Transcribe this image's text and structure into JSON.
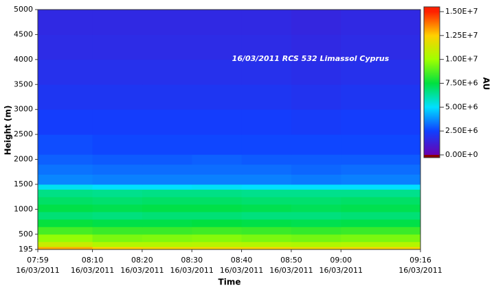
{
  "chart_data": {
    "type": "heatmap",
    "title": "16/03/2011 RCS 532 Limassol Cyprus",
    "x_label": "Time",
    "y_label": "Height (m)",
    "colorbar_label": "AU",
    "x": [
      "2011-03-16T07:59",
      "2011-03-16T08:10",
      "2011-03-16T08:20",
      "2011-03-16T08:30",
      "2011-03-16T08:40",
      "2011-03-16T08:50",
      "2011-03-16T09:00"
    ],
    "xlim": [
      "2011-03-16T07:59",
      "2011-03-16T09:16"
    ],
    "xticks": [
      {
        "value": "2011-03-16T07:59",
        "label": [
          "07:59",
          "16/03/2011"
        ]
      },
      {
        "value": "2011-03-16T08:10",
        "label": [
          "08:10",
          "16/03/2011"
        ]
      },
      {
        "value": "2011-03-16T08:20",
        "label": [
          "08:20",
          "16/03/2011"
        ]
      },
      {
        "value": "2011-03-16T08:30",
        "label": [
          "08:30",
          "16/03/2011"
        ]
      },
      {
        "value": "2011-03-16T08:40",
        "label": [
          "08:40",
          "16/03/2011"
        ]
      },
      {
        "value": "2011-03-16T08:50",
        "label": [
          "08:50",
          "16/03/2011"
        ]
      },
      {
        "value": "2011-03-16T09:00",
        "label": [
          "09:00",
          "16/03/2011"
        ]
      },
      {
        "value": "2011-03-16T09:16",
        "label": [
          "09:16",
          "16/03/2011"
        ]
      }
    ],
    "y": [
      195,
      250,
      350,
      500,
      650,
      800,
      950,
      1100,
      1250,
      1400,
      1500,
      1700,
      1900,
      2100,
      2500,
      3000,
      3500,
      4000,
      4500
    ],
    "ylim": [
      195,
      5000
    ],
    "yticks": [
      195,
      500,
      1000,
      1500,
      2000,
      2500,
      3000,
      3500,
      4000,
      4500,
      5000
    ],
    "z": [
      [
        13000000.0,
        12500000.0,
        12200000.0,
        12200000.0,
        12300000.0,
        12000000.0,
        12200000.0
      ],
      [
        11000000.0,
        10500000.0,
        10500000.0,
        10600000.0,
        10500000.0,
        10400000.0,
        10500000.0
      ],
      [
        9800000.0,
        9400000.0,
        9500000.0,
        9600000.0,
        9400000.0,
        9300000.0,
        9400000.0
      ],
      [
        8600000.0,
        8400000.0,
        8400000.0,
        8500000.0,
        8400000.0,
        8300000.0,
        8400000.0
      ],
      [
        7600000.0,
        7400000.0,
        7400000.0,
        7500000.0,
        7400000.0,
        7300000.0,
        7400000.0
      ],
      [
        6800000.0,
        6700000.0,
        6800000.0,
        6800000.0,
        6700000.0,
        6700000.0,
        6800000.0
      ],
      [
        7400000.0,
        7300000.0,
        7400000.0,
        7400000.0,
        7300000.0,
        7200000.0,
        7300000.0
      ],
      [
        7000000.0,
        6900000.0,
        7000000.0,
        7000000.0,
        6900000.0,
        6900000.0,
        7000000.0
      ],
      [
        6600000.0,
        6500000.0,
        6600000.0,
        6600000.0,
        6500000.0,
        6500000.0,
        6500000.0
      ],
      [
        5200000.0,
        5000000.0,
        5000000.0,
        5100000.0,
        5000000.0,
        5000000.0,
        5000000.0
      ],
      [
        3600000.0,
        3500000.0,
        3500000.0,
        3500000.0,
        3500000.0,
        3400000.0,
        3500000.0
      ],
      [
        3300000.0,
        3200000.0,
        3200000.0,
        3200000.0,
        3200000.0,
        3100000.0,
        3200000.0
      ],
      [
        3000000.0,
        2900000.0,
        2900000.0,
        3000000.0,
        2900000.0,
        2900000.0,
        2900000.0
      ],
      [
        2700000.0,
        2600000.0,
        2600000.0,
        2600000.0,
        2600000.0,
        2600000.0,
        2600000.0
      ],
      [
        2400000.0,
        2400000.0,
        2400000.0,
        2400000.0,
        2400000.0,
        2300000.0,
        2400000.0
      ],
      [
        2100000.0,
        2100000.0,
        2100000.0,
        2100000.0,
        2100000.0,
        2000000.0,
        2100000.0
      ],
      [
        1900000.0,
        1900000.0,
        1900000.0,
        1900000.0,
        1900000.0,
        1800000.0,
        1900000.0
      ],
      [
        1700000.0,
        1700000.0,
        1700000.0,
        1700000.0,
        1700000.0,
        1600000.0,
        1700000.0
      ],
      [
        1600000.0,
        1600000.0,
        1600000.0,
        1600000.0,
        1600000.0,
        1500000.0,
        1600000.0
      ]
    ],
    "zlim": [
      0,
      15000000.0
    ],
    "zticks": [
      {
        "value": 0,
        "label": "0.00E+0"
      },
      {
        "value": 2500000,
        "label": "2.50E+6"
      },
      {
        "value": 5000000,
        "label": "5.00E+6"
      },
      {
        "value": 7500000,
        "label": "7.50E+6"
      },
      {
        "value": 10000000,
        "label": "1.00E+7"
      },
      {
        "value": 12500000,
        "label": "1.25E+7"
      },
      {
        "value": 15000000,
        "label": "1.50E+7"
      }
    ],
    "colorscale": [
      [
        0,
        "#6a00b0"
      ],
      [
        2500000,
        "#1040ff"
      ],
      [
        5000000,
        "#00e0ff"
      ],
      [
        7500000,
        "#00e040"
      ],
      [
        10000000,
        "#a0ff00"
      ],
      [
        12500000,
        "#ffd000"
      ],
      [
        15000000,
        "#ff2000"
      ]
    ]
  }
}
